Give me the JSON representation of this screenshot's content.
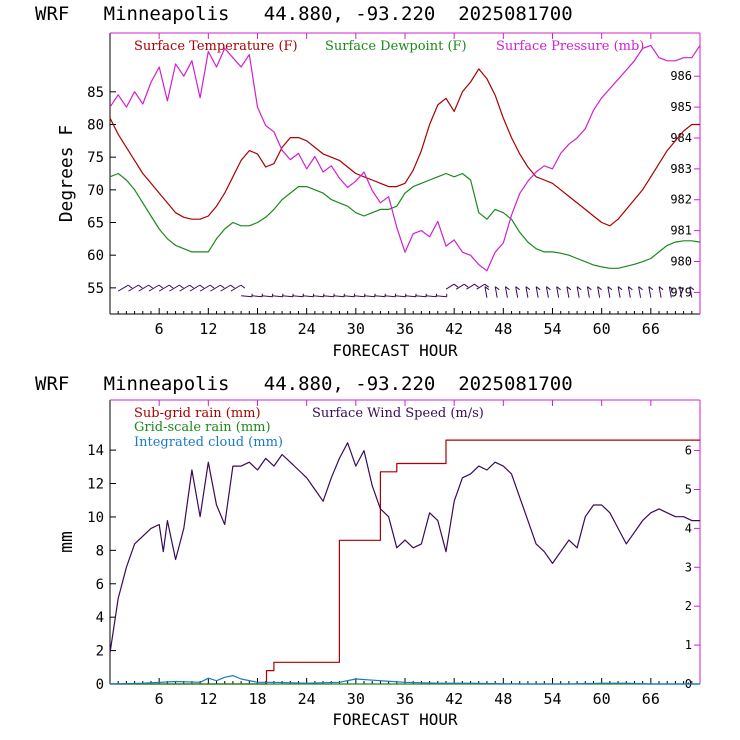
{
  "chart_data": [
    {
      "type": "line",
      "title": "WRF   Minneapolis   44.880, -93.220  2025081700",
      "xlabel": "FORECAST HOUR",
      "ylabel": "Degrees F",
      "xlim": [
        0,
        72
      ],
      "ylim": [
        51,
        94
      ],
      "y2lim": [
        978.3,
        987.4
      ],
      "x_ticks": [
        6,
        12,
        18,
        24,
        30,
        36,
        42,
        48,
        54,
        60,
        66
      ],
      "y_ticks": [
        55,
        60,
        65,
        70,
        75,
        80,
        85
      ],
      "y2_ticks": [
        979,
        980,
        981,
        982,
        983,
        984,
        985,
        986
      ],
      "legend": [
        {
          "label": "Surface Temperature (F)",
          "color": "#aa0000"
        },
        {
          "label": "Surface Dewpoint (F)",
          "color": "#1a8a1a"
        },
        {
          "label": "Surface Pressure (mb)",
          "color": "#d020d0"
        }
      ],
      "series": [
        {
          "name": "Surface Temperature (F)",
          "color": "#aa0000",
          "axis": "left",
          "x": [
            0,
            1,
            2,
            3,
            4,
            5,
            6,
            7,
            8,
            9,
            10,
            11,
            12,
            13,
            14,
            15,
            16,
            17,
            18,
            19,
            20,
            21,
            22,
            23,
            24,
            25,
            26,
            27,
            28,
            29,
            30,
            31,
            32,
            33,
            34,
            35,
            36,
            37,
            38,
            39,
            40,
            41,
            42,
            43,
            44,
            45,
            46,
            47,
            48,
            49,
            50,
            51,
            52,
            53,
            54,
            55,
            56,
            57,
            58,
            59,
            60,
            61,
            62,
            63,
            64,
            65,
            66,
            67,
            68,
            69,
            70,
            71,
            72
          ],
          "values": [
            81,
            78.5,
            76.5,
            74.5,
            72.5,
            71,
            69.5,
            68,
            66.5,
            65.8,
            65.5,
            65.5,
            66,
            67.5,
            69.5,
            72,
            74.5,
            76,
            75.5,
            73.5,
            74,
            76.5,
            78,
            78,
            77.5,
            76.5,
            75.5,
            75,
            74.5,
            73.5,
            72.5,
            72,
            71.5,
            71,
            70.5,
            70.5,
            71,
            73,
            76,
            80,
            83,
            84,
            82,
            85,
            86.5,
            88.5,
            87,
            84.5,
            81,
            78,
            75.5,
            73.5,
            72,
            71.5,
            71,
            70,
            69,
            68,
            67,
            66,
            65,
            64.5,
            65.5,
            67,
            68.5,
            70,
            72,
            74,
            76,
            77.5,
            79,
            80,
            80
          ]
        },
        {
          "name": "Surface Dewpoint (F)",
          "color": "#1a8a1a",
          "axis": "left",
          "x": [
            0,
            1,
            2,
            3,
            4,
            5,
            6,
            7,
            8,
            9,
            10,
            11,
            12,
            13,
            14,
            15,
            16,
            17,
            18,
            19,
            20,
            21,
            22,
            23,
            24,
            25,
            26,
            27,
            28,
            29,
            30,
            31,
            32,
            33,
            34,
            35,
            36,
            37,
            38,
            39,
            40,
            41,
            42,
            43,
            44,
            45,
            46,
            47,
            48,
            49,
            50,
            51,
            52,
            53,
            54,
            55,
            56,
            57,
            58,
            59,
            60,
            61,
            62,
            63,
            64,
            65,
            66,
            67,
            68,
            69,
            70,
            71,
            72
          ],
          "values": [
            72,
            72.5,
            71.5,
            70,
            68,
            66,
            64,
            62.5,
            61.5,
            61,
            60.5,
            60.5,
            60.5,
            62.5,
            64,
            65,
            64.5,
            64.5,
            65,
            65.8,
            67,
            68.5,
            69.5,
            70.5,
            70.5,
            70,
            69.5,
            68.5,
            68,
            67.5,
            66.5,
            66,
            66.5,
            67,
            67,
            67.5,
            69.5,
            70.5,
            71,
            71.5,
            72,
            72.5,
            72,
            72.5,
            71.5,
            66.5,
            65.5,
            67,
            66.5,
            65.5,
            63.5,
            62,
            61,
            60.5,
            60.5,
            60.3,
            60,
            59.5,
            59,
            58.5,
            58.2,
            58,
            58,
            58.3,
            58.6,
            59,
            59.5,
            60.5,
            61.5,
            62,
            62.2,
            62.2,
            62
          ]
        },
        {
          "name": "Surface Pressure (mb)",
          "color": "#d020d0",
          "axis": "right",
          "x": [
            0,
            1,
            2,
            3,
            4,
            5,
            6,
            7,
            8,
            9,
            10,
            11,
            12,
            13,
            14,
            15,
            16,
            17,
            18,
            19,
            20,
            21,
            22,
            23,
            24,
            25,
            26,
            27,
            28,
            29,
            30,
            31,
            32,
            33,
            34,
            35,
            36,
            37,
            38,
            39,
            40,
            41,
            42,
            43,
            44,
            45,
            46,
            47,
            48,
            49,
            50,
            51,
            52,
            53,
            54,
            55,
            56,
            57,
            58,
            59,
            60,
            61,
            62,
            63,
            64,
            65,
            66,
            67,
            68,
            69,
            70,
            71,
            72
          ],
          "values": [
            985,
            985.4,
            985,
            985.5,
            985.1,
            985.8,
            986.3,
            985.2,
            986.4,
            986,
            986.5,
            985.3,
            986.8,
            986.3,
            986.9,
            986.6,
            986.3,
            986.7,
            985,
            984.4,
            984.2,
            983.6,
            983.3,
            983.5,
            983,
            983.4,
            982.9,
            983.1,
            982.7,
            982.4,
            982.6,
            982.9,
            982.3,
            981.9,
            982.1,
            981.1,
            980.3,
            980.9,
            981,
            980.8,
            981.3,
            980.5,
            980.7,
            980.3,
            980.2,
            979.9,
            979.7,
            980.3,
            980.6,
            981.5,
            982.2,
            982.6,
            982.9,
            983.1,
            983,
            983.5,
            983.8,
            984,
            984.3,
            984.9,
            985.3,
            985.6,
            985.9,
            986.2,
            986.5,
            986.9,
            987,
            986.6,
            986.5,
            986.5,
            986.6,
            986.6,
            987
          ]
        }
      ],
      "wind_barbs_label": ""
    },
    {
      "type": "line",
      "title": "WRF   Minneapolis   44.880, -93.220  2025081700",
      "xlabel": "FORECAST HOUR",
      "ylabel": "mm",
      "xlim": [
        0,
        72
      ],
      "ylim": [
        0,
        17
      ],
      "y2lim": [
        0,
        7.3
      ],
      "x_ticks": [
        6,
        12,
        18,
        24,
        30,
        36,
        42,
        48,
        54,
        60,
        66
      ],
      "y_ticks": [
        0,
        2,
        4,
        6,
        8,
        10,
        12,
        14
      ],
      "y2_ticks": [
        0,
        1,
        2,
        3,
        4,
        5,
        6
      ],
      "legend": [
        {
          "label": "Sub-grid rain (mm)",
          "color": "#aa0000"
        },
        {
          "label": "Grid-scale rain (mm)",
          "color": "#1a8a1a"
        },
        {
          "label": "Integrated cloud (mm)",
          "color": "#1a7ac8"
        },
        {
          "label": "Surface Wind Speed (m/s)",
          "color": "#3a0a5a"
        }
      ],
      "series": [
        {
          "name": "Sub-grid rain (mm)",
          "color": "#aa0000",
          "axis": "left",
          "step": true,
          "x": [
            0,
            19,
            19.1,
            20,
            27.9,
            28,
            32.9,
            33,
            34.9,
            35,
            40.9,
            41,
            72
          ],
          "values": [
            0,
            0,
            0.8,
            1.3,
            1.3,
            8.6,
            8.6,
            12.7,
            12.7,
            13.2,
            13.2,
            14.6,
            14.6
          ]
        },
        {
          "name": "Grid-scale rain (mm)",
          "color": "#1a8a1a",
          "axis": "left",
          "x": [
            0,
            72
          ],
          "values": [
            0,
            0
          ]
        },
        {
          "name": "Integrated cloud (mm)",
          "color": "#1a7ac8",
          "axis": "left",
          "x": [
            0,
            4,
            8,
            11,
            12,
            13,
            14,
            15,
            16,
            18,
            20,
            24,
            28,
            30,
            33,
            36,
            40,
            44,
            50,
            56,
            60,
            63,
            66,
            72
          ],
          "values": [
            0,
            0.05,
            0.15,
            0.1,
            0.35,
            0.2,
            0.4,
            0.5,
            0.3,
            0.1,
            0.1,
            0.05,
            0.1,
            0.3,
            0.2,
            0.1,
            0.05,
            0.05,
            0,
            0,
            0.05,
            0.05,
            0,
            0
          ]
        },
        {
          "name": "Surface Wind Speed (m/s)",
          "color": "#3a0a5a",
          "axis": "right",
          "x": [
            0,
            1,
            2,
            3,
            4,
            5,
            6,
            6.5,
            7,
            8,
            9,
            10,
            11,
            12,
            13,
            14,
            15,
            16,
            17,
            18,
            19,
            20,
            21,
            22,
            23,
            24,
            25,
            26,
            27,
            28,
            29,
            30,
            31,
            32,
            33,
            34,
            35,
            36,
            37,
            38,
            39,
            40,
            41,
            42,
            43,
            44,
            45,
            46,
            47,
            48,
            49,
            50,
            51,
            52,
            53,
            54,
            55,
            56,
            57,
            58,
            59,
            60,
            61,
            62,
            63,
            64,
            65,
            66,
            67,
            68,
            69,
            70,
            71,
            72
          ],
          "values": [
            0.8,
            2.2,
            3.0,
            3.6,
            3.8,
            4.0,
            4.1,
            3.4,
            4.2,
            3.2,
            4.0,
            5.5,
            4.3,
            5.7,
            4.6,
            4.1,
            5.6,
            5.6,
            5.7,
            5.5,
            5.8,
            5.6,
            5.9,
            5.7,
            5.5,
            5.3,
            5.0,
            4.7,
            5.3,
            5.8,
            6.2,
            5.6,
            6.0,
            5.1,
            4.5,
            4.3,
            3.5,
            3.7,
            3.5,
            3.6,
            4.4,
            4.2,
            3.4,
            4.7,
            5.3,
            5.4,
            5.6,
            5.5,
            5.7,
            5.6,
            5.4,
            4.8,
            4.2,
            3.6,
            3.4,
            3.1,
            3.4,
            3.7,
            3.5,
            4.3,
            4.6,
            4.6,
            4.4,
            4.0,
            3.6,
            3.9,
            4.2,
            4.4,
            4.5,
            4.4,
            4.3,
            4.3,
            4.2,
            4.2
          ]
        }
      ]
    }
  ]
}
